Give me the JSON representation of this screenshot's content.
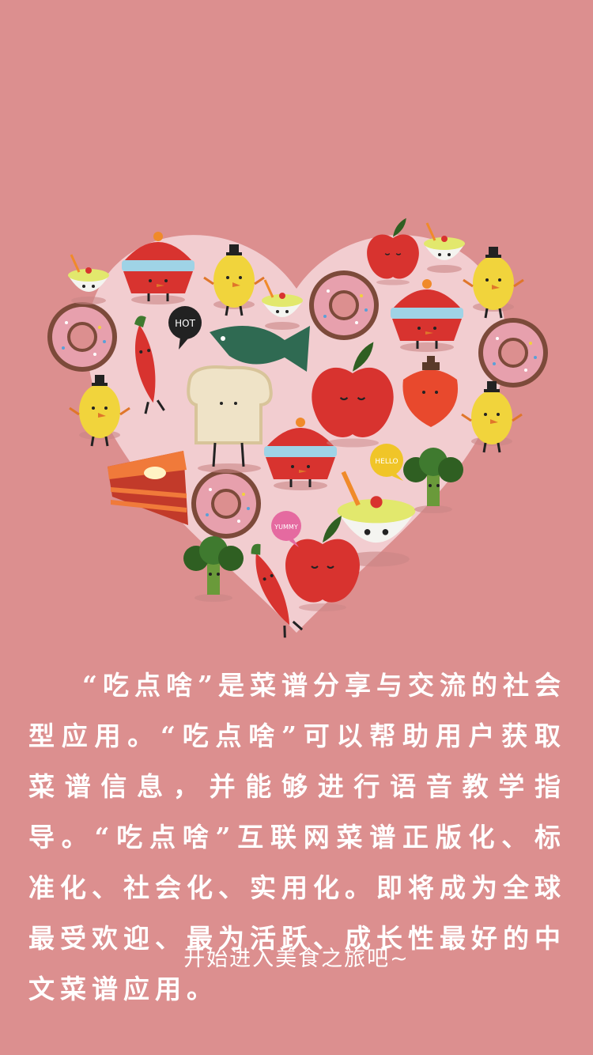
{
  "hero": {
    "bubble_hot": "HOT",
    "bubble_hello": "HELLO",
    "bubble_yummy": "YUMMY",
    "colors": {
      "background": "#dc8f8f",
      "heart": "#f2cdd0",
      "red": "#d8332f",
      "yellow": "#f1d43c",
      "donut": "#7c4a3a",
      "icing": "#e7a0ad",
      "green": "#3f7a2f",
      "fish": "#2f6a52"
    }
  },
  "intro": {
    "text": "“吃点啥”是菜谱分享与交流的社会型应用。“吃点啥”可以帮助用户获取菜谱信息，并能够进行语音教学指导。“吃点啥”互联网菜谱正版化、标准化、社会化、实用化。即将成为全球最受欢迎、最为活跃、成长性最好的中文菜谱应用。"
  },
  "cta": {
    "label": "开始进入美食之旅吧~"
  }
}
